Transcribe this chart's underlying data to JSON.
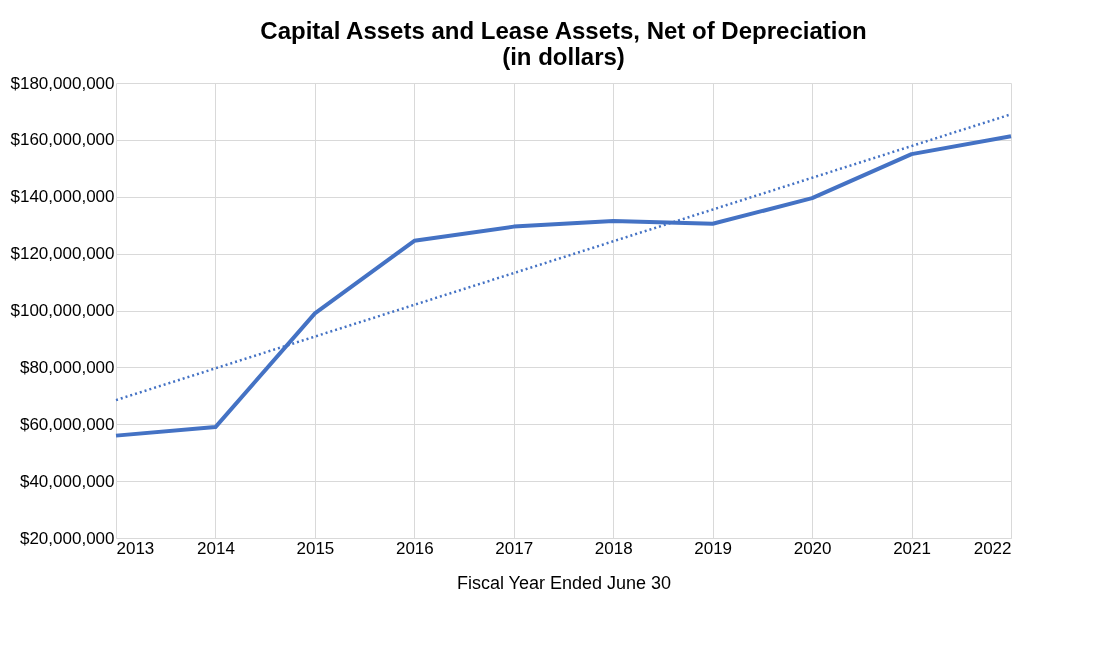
{
  "chart_data": {
    "type": "line",
    "title": [
      "Capital Assets and Lease Assets, Net of Depreciation",
      "(in dollars)"
    ],
    "xlabel": "Fiscal Year Ended June 30",
    "x": [
      2013,
      2014,
      2015,
      2016,
      2017,
      2018,
      2019,
      2020,
      2021,
      2022
    ],
    "series": [
      {
        "color": "#4472c4",
        "values": [
          56000000,
          59000000,
          99000000,
          124500000,
          129500000,
          131500000,
          130500000,
          139500000,
          155000000,
          161300000
        ],
        "line_style": "solid"
      },
      {
        "type": "line",
        "color": "#4472c4",
        "x": [
          2013,
          2022
        ],
        "values": [
          68500000,
          169000000
        ],
        "line_style": "dotted"
      }
    ],
    "xlim": [
      2013,
      2022
    ],
    "xticks": [
      2013,
      2014,
      2015,
      2016,
      2017,
      2018,
      2019,
      2020,
      2021,
      2022
    ],
    "ylim": [
      20000000,
      180000000
    ],
    "yticks": [
      {
        "value": 20000000,
        "label": "$20,000,000"
      },
      {
        "value": 40000000,
        "label": "$40,000,000"
      },
      {
        "value": 60000000,
        "label": "$60,000,000"
      },
      {
        "value": 80000000,
        "label": "$80,000,000"
      },
      {
        "value": 100000000,
        "label": "$100,000,000"
      },
      {
        "value": 120000000,
        "label": "$120,000,000"
      },
      {
        "value": 140000000,
        "label": "$140,000,000"
      },
      {
        "value": 160000000,
        "label": "$160,000,000"
      },
      {
        "value": 180000000,
        "label": "$180,000,000"
      }
    ],
    "grid": true,
    "marker": "none"
  }
}
